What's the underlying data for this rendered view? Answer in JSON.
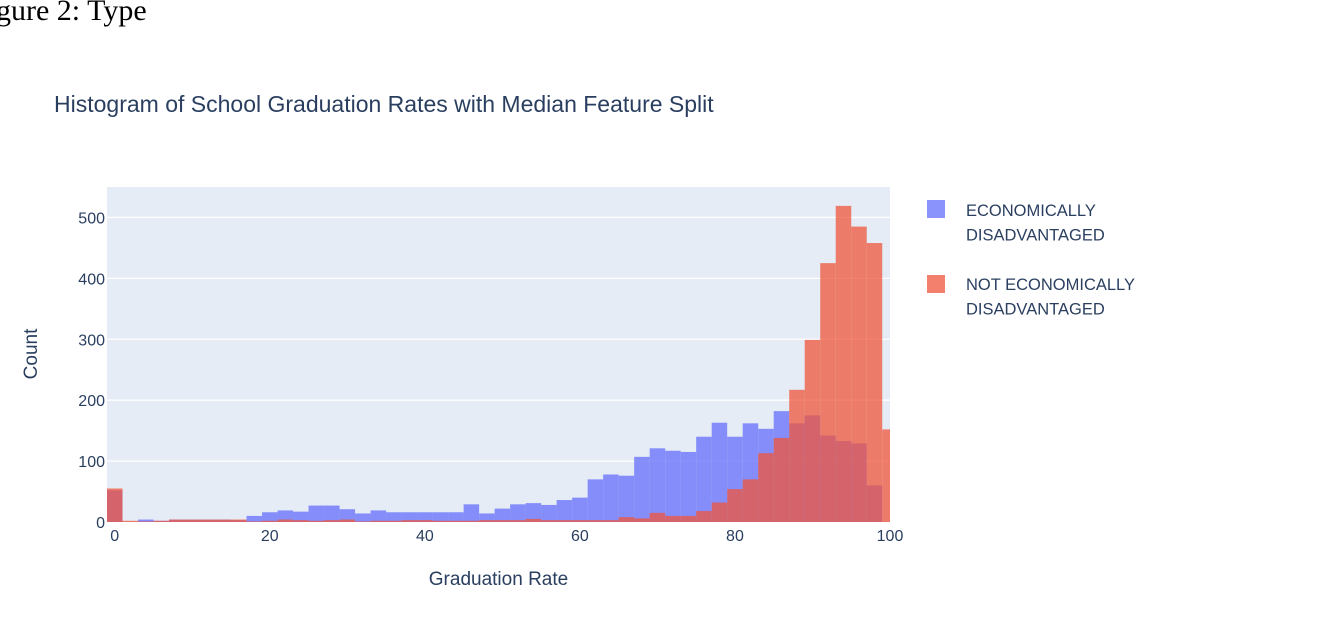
{
  "header": {
    "caption": "gure 2: Type"
  },
  "chart_data": {
    "type": "histogram",
    "title": "Histogram of School Graduation Rates with Median Feature Split",
    "xlabel": "Graduation Rate",
    "ylabel": "Count",
    "xlim": [
      -1,
      100
    ],
    "ylim": [
      0,
      550
    ],
    "x_ticks": [
      0,
      20,
      40,
      60,
      80,
      100
    ],
    "y_ticks": [
      0,
      100,
      200,
      300,
      400,
      500
    ],
    "grid": true,
    "barmode": "overlay",
    "legend_position": "top-right-outside",
    "bin_start": -1,
    "bin_width": 2,
    "series": [
      {
        "name": "ECONOMICALLY DISADVANTAGED",
        "color": "#636efa",
        "values": [
          52,
          0,
          4,
          2,
          4,
          4,
          4,
          4,
          3,
          10,
          16,
          19,
          17,
          27,
          27,
          21,
          14,
          19,
          16,
          16,
          16,
          16,
          16,
          29,
          14,
          22,
          29,
          31,
          28,
          36,
          40,
          70,
          78,
          76,
          107,
          121,
          117,
          115,
          140,
          163,
          140,
          162,
          153,
          182,
          162,
          175,
          142,
          133,
          129,
          60
        ]
      },
      {
        "name": "NOT ECONOMICALLY DISADVANTAGED",
        "color": "#ef553b",
        "values": [
          55,
          2,
          1,
          2,
          4,
          4,
          4,
          4,
          4,
          1,
          2,
          4,
          3,
          2,
          3,
          4,
          1,
          2,
          2,
          3,
          3,
          2,
          2,
          2,
          3,
          3,
          3,
          5,
          3,
          3,
          3,
          3,
          3,
          8,
          6,
          15,
          10,
          10,
          18,
          32,
          54,
          70,
          113,
          138,
          217,
          299,
          425,
          519,
          485,
          458,
          152
        ]
      }
    ]
  }
}
